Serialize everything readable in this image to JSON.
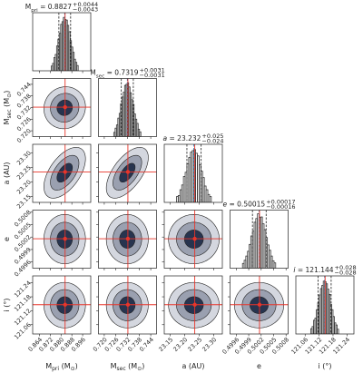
{
  "chart_data": {
    "type": "corner",
    "contour_levels": [
      3.5,
      2.4,
      1.3
    ],
    "contour_colors": [
      "#d4d7df",
      "#9aa0b0",
      "#27344f"
    ],
    "colors": {
      "hist": "#333333",
      "quantile": "#222222",
      "median": "#1f77b4",
      "truth": "#e8352a"
    },
    "correlation": [
      [],
      [
        0.05
      ],
      [
        0.55,
        0.6
      ],
      [
        0.0,
        0.0,
        0.0
      ],
      [
        0.0,
        0.0,
        0.0,
        0.0
      ]
    ],
    "parameters": [
      {
        "label": [
          {
            "text": "M"
          },
          {
            "text": "pri",
            "sub": true
          },
          {
            "text": " (M"
          },
          {
            "text": "⊙",
            "sub": true
          },
          {
            "text": ")"
          }
        ],
        "title": {
          "segments": [
            {
              "text": "M"
            },
            {
              "text": "pri",
              "sub": true
            },
            {
              "text": " = 0.8827"
            }
          ],
          "upper": "+0.0044",
          "lower": "−0.0043"
        },
        "xlim": [
          0.859,
          0.902
        ],
        "xticks": [
          0.864,
          0.872,
          {
            "value": 0.88,
            "label": "0.880"
          },
          0.888,
          0.896
        ],
        "quantiles": [
          0.8784,
          0.8827,
          0.8871
        ],
        "truth": 0.883,
        "sigma": 0.0044,
        "ylim": [
          0,
          110
        ],
        "bins": [
          0.8727,
          0.8737,
          0.8747,
          0.8757,
          0.8767,
          0.8777,
          0.8787,
          0.8797,
          0.8807,
          0.8817,
          0.8827,
          0.8837,
          0.8847,
          0.8857,
          0.8867,
          0.8877,
          0.8887,
          0.8897,
          0.8907,
          0.8917,
          0.8927
        ],
        "counts": [
          9,
          14,
          25,
          31,
          47,
          60,
          71,
          88,
          93,
          101,
          97,
          96,
          86,
          74,
          57,
          45,
          35,
          22,
          16,
          10
        ]
      },
      {
        "label": [
          {
            "text": "M"
          },
          {
            "text": "sec",
            "sub": true
          },
          {
            "text": " (M"
          },
          {
            "text": "⊙",
            "sub": true
          },
          {
            "text": ")"
          }
        ],
        "title": {
          "segments": [
            {
              "text": "M"
            },
            {
              "text": "sec",
              "sub": true
            },
            {
              "text": " = 0.7319"
            }
          ],
          "upper": "+0.0031",
          "lower": "−0.0031"
        },
        "xlim": [
          0.717,
          0.747
        ],
        "xticks": [
          {
            "value": 0.72,
            "label": "0.720"
          },
          0.726,
          0.732,
          0.738,
          0.744
        ],
        "quantiles": [
          0.7288,
          0.7319,
          0.735
        ],
        "truth": 0.7322,
        "sigma": 0.0031,
        "ylim": [
          0,
          110
        ],
        "bins": [
          0.7249,
          0.7256,
          0.7263,
          0.727,
          0.7277,
          0.7284,
          0.7291,
          0.7298,
          0.7305,
          0.7312,
          0.7319,
          0.7326,
          0.7333,
          0.734,
          0.7347,
          0.7354,
          0.7361,
          0.7368,
          0.7375,
          0.7382,
          0.7389
        ],
        "counts": [
          8,
          16,
          22,
          35,
          44,
          62,
          75,
          84,
          97,
          99,
          102,
          94,
          83,
          70,
          61,
          43,
          33,
          25,
          14,
          9
        ]
      },
      {
        "label": [
          {
            "text": "a (AU)"
          }
        ],
        "title": {
          "segments": [
            {
              "text": "a",
              "italic": true
            },
            {
              "text": " = 23.232"
            }
          ],
          "upper": "+0.025",
          "lower": "−0.024"
        },
        "xlim": [
          23.13,
          23.33
        ],
        "xticks": [
          23.15,
          {
            "value": 23.2,
            "label": "23.20"
          },
          23.25,
          {
            "value": 23.3,
            "label": "23.30"
          }
        ],
        "quantiles": [
          23.208,
          23.232,
          23.257
        ],
        "truth": 23.235,
        "sigma": 0.025,
        "ylim": [
          0,
          110
        ],
        "bins": [
          23.172,
          23.178,
          23.184,
          23.19,
          23.196,
          23.202,
          23.208,
          23.214,
          23.22,
          23.226,
          23.232,
          23.238,
          23.244,
          23.25,
          23.256,
          23.262,
          23.268,
          23.274,
          23.28,
          23.286,
          23.292
        ],
        "counts": [
          11,
          13,
          24,
          33,
          49,
          57,
          73,
          85,
          95,
          98,
          100,
          93,
          88,
          71,
          59,
          47,
          31,
          24,
          15,
          11
        ]
      },
      {
        "label": [
          {
            "text": "e"
          }
        ],
        "title": {
          "segments": [
            {
              "text": "e",
              "italic": true
            },
            {
              "text": " = 0.50015"
            }
          ],
          "upper": "+0.00017",
          "lower": "−0.00016"
        },
        "xlim": [
          0.49945,
          0.50085
        ],
        "xticks": [
          0.4996,
          0.4999,
          0.5002,
          0.5005,
          0.5008
        ],
        "quantiles": [
          0.49999,
          0.50015,
          0.50032
        ],
        "truth": 0.50016,
        "sigma": 0.00017,
        "ylim": [
          0,
          110
        ],
        "bins": [
          0.49975,
          0.49979,
          0.49983,
          0.49987,
          0.49991,
          0.49995,
          0.49999,
          0.50003,
          0.50007,
          0.50011,
          0.50015,
          0.50019,
          0.50023,
          0.50027,
          0.50031,
          0.50035,
          0.50039,
          0.50043,
          0.50047,
          0.50051,
          0.50055
        ],
        "counts": [
          9,
          15,
          23,
          32,
          45,
          61,
          70,
          87,
          94,
          103,
          96,
          97,
          84,
          73,
          58,
          44,
          34,
          23,
          14,
          10
        ]
      },
      {
        "label": [
          {
            "text": "i (°)"
          }
        ],
        "title": {
          "segments": [
            {
              "text": "i",
              "italic": true
            },
            {
              "text": " = 121.144"
            }
          ],
          "upper": "+0.028",
          "lower": "−0.028"
        },
        "xlim": [
          121.02,
          121.27
        ],
        "xticks": [
          121.06,
          121.12,
          121.18,
          121.24
        ],
        "quantiles": [
          121.116,
          121.144,
          121.172
        ],
        "truth": 121.146,
        "sigma": 0.028,
        "ylim": [
          0,
          110
        ],
        "bins": [
          121.084,
          121.09,
          121.096,
          121.102,
          121.108,
          121.114,
          121.12,
          121.126,
          121.132,
          121.138,
          121.144,
          121.15,
          121.156,
          121.162,
          121.168,
          121.174,
          121.18,
          121.186,
          121.192,
          121.198,
          121.204
        ],
        "counts": [
          10,
          14,
          26,
          30,
          46,
          59,
          74,
          86,
          92,
          100,
          99,
          95,
          85,
          75,
          56,
          46,
          33,
          21,
          17,
          9
        ]
      }
    ]
  }
}
